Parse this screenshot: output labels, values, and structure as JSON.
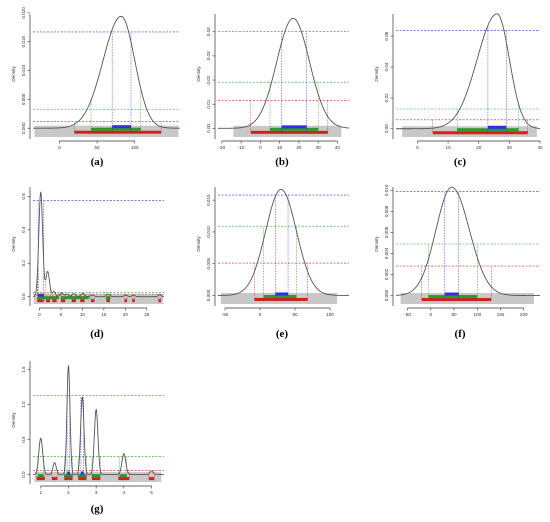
{
  "chart_data": [
    {
      "type": "line",
      "panel": "(a)",
      "ylabel": "Density",
      "x_ticks": [
        0,
        50,
        100
      ],
      "y_ticks": [
        "0.000",
        "0.005",
        "0.010",
        "0.015",
        "0.020"
      ],
      "xlim": [
        -35,
        160
      ],
      "ylim": [
        -0.0017,
        0.0205
      ],
      "peaks": [
        {
          "mu": 82,
          "sl": 24,
          "sr": 18,
          "h": 0.0194
        }
      ],
      "hlines": {
        "blue": 0.0167,
        "green": 0.0032,
        "red": 0.0012
      },
      "intervals": {
        "blue": [
          [
            70,
            95
          ]
        ],
        "green": [
          [
            42,
            108
          ]
        ],
        "red": [
          [
            20,
            135
          ]
        ]
      },
      "gray_band": [
        -33,
        158
      ]
    },
    {
      "type": "line",
      "panel": "(b)",
      "ylabel": "Density",
      "x_ticks": [
        -20,
        -10,
        0,
        10,
        20,
        30,
        40
      ],
      "y_ticks": [
        "0.00",
        "0.01",
        "0.02",
        "0.03",
        "0.04"
      ],
      "xlim": [
        -22,
        46
      ],
      "ylim": [
        -0.004,
        0.049
      ],
      "peaks": [
        {
          "mu": 17,
          "sl": 8.5,
          "sr": 8.5,
          "h": 0.0455
        }
      ],
      "hlines": {
        "blue": 0.0401,
        "green": 0.0191,
        "red": 0.0116
      },
      "intervals": {
        "blue": [
          [
            11,
            24
          ]
        ],
        "green": [
          [
            5,
            30
          ]
        ],
        "red": [
          [
            -5,
            35
          ]
        ]
      },
      "gray_band": [
        -14,
        42
      ]
    },
    {
      "type": "line",
      "panel": "(c)",
      "ylabel": "Density",
      "x_ticks": [
        0,
        10,
        20,
        30,
        40
      ],
      "y_ticks": [
        "0.00",
        "0.02",
        "0.04",
        "0.06"
      ],
      "xlim": [
        -7,
        40
      ],
      "ylim": [
        -0.006,
        0.077
      ],
      "peaks": [
        {
          "mu": 26,
          "sl": 6.5,
          "sr": 4,
          "h": 0.0745
        }
      ],
      "hlines": {
        "blue": 0.0638,
        "green": 0.0128,
        "red": 0.0058
      },
      "intervals": {
        "blue": [
          [
            23,
            29
          ]
        ],
        "green": [
          [
            13,
            33
          ]
        ],
        "red": [
          [
            5,
            36
          ]
        ]
      },
      "gray_band": [
        -5,
        39
      ]
    },
    {
      "type": "line",
      "panel": "(d)",
      "ylabel": "Density",
      "x_ticks": [
        0,
        5,
        10,
        15,
        20,
        25
      ],
      "y_ticks": [
        "0.0",
        "0.2",
        "0.4",
        "0.6"
      ],
      "xlim": [
        -1.5,
        29
      ],
      "ylim": [
        -0.05,
        0.68
      ],
      "peaks": [
        {
          "mu": 0.3,
          "sl": 0.45,
          "sr": 0.45,
          "h": 0.625
        },
        {
          "mu": 1.9,
          "sl": 0.4,
          "sr": 0.45,
          "h": 0.15
        },
        {
          "mu": 3.4,
          "sl": 0.35,
          "sr": 0.35,
          "h": 0.03
        },
        {
          "mu": 5.2,
          "sl": 0.4,
          "sr": 0.4,
          "h": 0.022
        },
        {
          "mu": 6.4,
          "sl": 0.35,
          "sr": 0.35,
          "h": 0.015
        },
        {
          "mu": 8.0,
          "sl": 0.4,
          "sr": 0.4,
          "h": 0.018
        },
        {
          "mu": 10.1,
          "sl": 0.4,
          "sr": 0.4,
          "h": 0.02
        },
        {
          "mu": 12.3,
          "sl": 0.4,
          "sr": 0.4,
          "h": 0.01
        },
        {
          "mu": 16.0,
          "sl": 0.4,
          "sr": 0.4,
          "h": 0.015
        },
        {
          "mu": 20.1,
          "sl": 0.35,
          "sr": 0.35,
          "h": 0.01
        },
        {
          "mu": 21.9,
          "sl": 0.35,
          "sr": 0.35,
          "h": 0.009
        },
        {
          "mu": 28.0,
          "sl": 0.35,
          "sr": 0.35,
          "h": 0.012
        }
      ],
      "hlines": {
        "blue": 0.575,
        "green": 0.025,
        "red": 0.015
      },
      "intervals": {
        "blue": [
          [
            -0.3,
            1.0
          ]
        ],
        "green": [
          [
            -0.4,
            4.5
          ],
          [
            5.0,
            11.5
          ],
          [
            15.5,
            16.5
          ]
        ],
        "red": [
          [
            -0.5,
            1.0
          ],
          [
            1.5,
            2.5
          ],
          [
            3.0,
            4.0
          ],
          [
            5.0,
            6.0
          ],
          [
            7.5,
            8.5
          ],
          [
            9.5,
            10.5
          ],
          [
            12.0,
            12.8
          ],
          [
            15.6,
            16.4
          ],
          [
            19.8,
            20.4
          ],
          [
            21.6,
            22.2
          ],
          [
            27.7,
            28.3
          ]
        ]
      },
      "gray_band": [
        -1.3,
        28.8
      ]
    },
    {
      "type": "line",
      "panel": "(e)",
      "ylabel": "Density",
      "x_ticks": [
        -50,
        0,
        50,
        100
      ],
      "y_ticks": [
        "0.000",
        "0.005",
        "0.010",
        "0.015"
      ],
      "xlim": [
        -60,
        127
      ],
      "ylim": [
        -0.0015,
        0.0177
      ],
      "peaks": [
        {
          "mu": 30,
          "sl": 22,
          "sr": 22,
          "h": 0.0167
        }
      ],
      "hlines": {
        "blue": 0.0158,
        "green": 0.0109,
        "red": 0.0051
      },
      "intervals": {
        "blue": [
          [
            22,
            40
          ]
        ],
        "green": [
          [
            5,
            52
          ]
        ],
        "red": [
          [
            -8,
            68
          ]
        ]
      },
      "gray_band": [
        -56,
        110
      ]
    },
    {
      "type": "line",
      "panel": "(f)",
      "ylabel": "Density",
      "x_ticks": [
        -50,
        0,
        50,
        100,
        150,
        200
      ],
      "y_ticks": [
        "0.000",
        "0.002",
        "0.004",
        "0.006",
        "0.008",
        "0.010"
      ],
      "xlim": [
        -75,
        235
      ],
      "ylim": [
        -0.0009,
        0.0107
      ],
      "peaks": [
        {
          "mu": 45,
          "sl": 34,
          "sr": 38,
          "h": 0.0103
        }
      ],
      "hlines": {
        "blue": 0.0099,
        "green": 0.0049,
        "red": 0.0028
      },
      "intervals": {
        "blue": [
          [
            30,
            60
          ]
        ],
        "green": [
          [
            -5,
            100
          ]
        ],
        "red": [
          [
            -20,
            130
          ]
        ]
      },
      "gray_band": [
        -65,
        222
      ]
    },
    {
      "type": "line",
      "panel": "(g)",
      "ylabel": "Density",
      "x_ticks": [
        1,
        2,
        3,
        4,
        5
      ],
      "y_ticks": [
        "0.0",
        "0.5",
        "1.0",
        "1.5"
      ],
      "xlim": [
        0.72,
        5.45
      ],
      "ylim": [
        -0.12,
        1.68
      ],
      "peaks": [
        {
          "mu": 1.0,
          "sl": 0.07,
          "sr": 0.07,
          "h": 0.52
        },
        {
          "mu": 1.5,
          "sl": 0.06,
          "sr": 0.06,
          "h": 0.17
        },
        {
          "mu": 2.0,
          "sl": 0.055,
          "sr": 0.055,
          "h": 1.56
        },
        {
          "mu": 2.5,
          "sl": 0.06,
          "sr": 0.06,
          "h": 1.11
        },
        {
          "mu": 3.0,
          "sl": 0.065,
          "sr": 0.065,
          "h": 0.93
        },
        {
          "mu": 4.0,
          "sl": 0.07,
          "sr": 0.07,
          "h": 0.3
        },
        {
          "mu": 5.0,
          "sl": 0.06,
          "sr": 0.06,
          "h": 0.05
        }
      ],
      "hlines": {
        "blue": 1.13,
        "green": 0.26,
        "red": 0.06
      },
      "intervals": {
        "blue": [
          [
            1.95,
            2.05
          ],
          [
            2.45,
            2.55
          ]
        ],
        "green": [
          [
            0.9,
            1.1
          ],
          [
            1.85,
            2.15
          ],
          [
            2.35,
            2.65
          ],
          [
            2.85,
            3.15
          ],
          [
            3.85,
            4.1
          ]
        ],
        "red": [
          [
            0.85,
            1.15
          ],
          [
            1.4,
            1.6
          ],
          [
            1.85,
            2.15
          ],
          [
            2.35,
            2.65
          ],
          [
            2.85,
            3.15
          ],
          [
            3.8,
            4.2
          ],
          [
            4.9,
            5.1
          ]
        ]
      },
      "gray_band": [
        0.78,
        5.35
      ]
    }
  ],
  "colors": {
    "blue": "#3030e0",
    "green": "#2a9a2a",
    "red": "#d22020",
    "gray": "#c8c8c8",
    "curve": "#555555"
  }
}
